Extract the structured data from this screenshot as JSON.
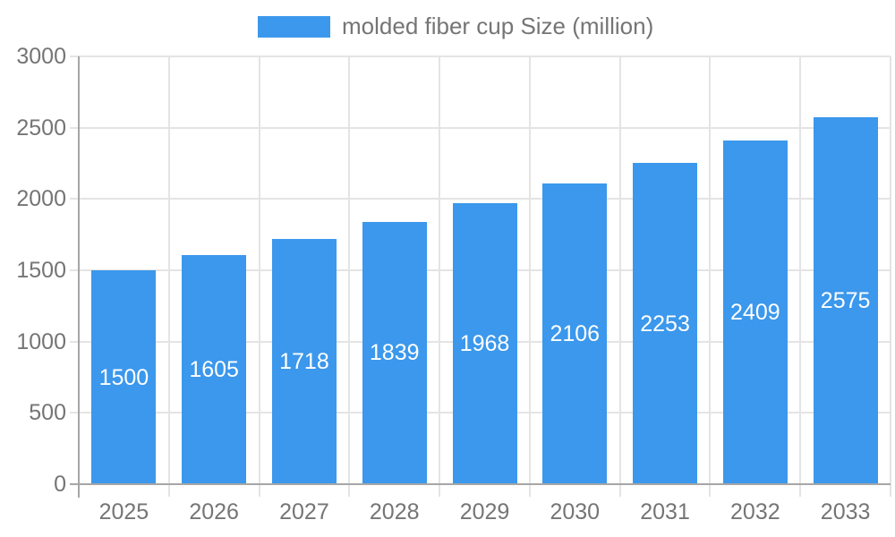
{
  "legend": {
    "label": "molded fiber cup Size (million)"
  },
  "colors": {
    "bar": "#3B98EC",
    "grid": "#E4E4E4",
    "axis": "#A6A6A6",
    "tick_text": "#757575",
    "value_text": "#FFFFFF",
    "background": "#FFFFFF"
  },
  "chart_data": {
    "type": "bar",
    "title": "",
    "xlabel": "",
    "ylabel": "",
    "categories": [
      "2025",
      "2026",
      "2027",
      "2028",
      "2029",
      "2030",
      "2031",
      "2032",
      "2033"
    ],
    "series": [
      {
        "name": "molded fiber cup Size (million)",
        "values": [
          1500,
          1605,
          1718,
          1839,
          1968,
          2106,
          2253,
          2409,
          2575
        ]
      }
    ],
    "ylim": [
      0,
      3000
    ],
    "yticks": [
      0,
      500,
      1000,
      1500,
      2000,
      2500,
      3000
    ],
    "grid": true,
    "legend_position": "top",
    "value_labels": "inside-center"
  }
}
